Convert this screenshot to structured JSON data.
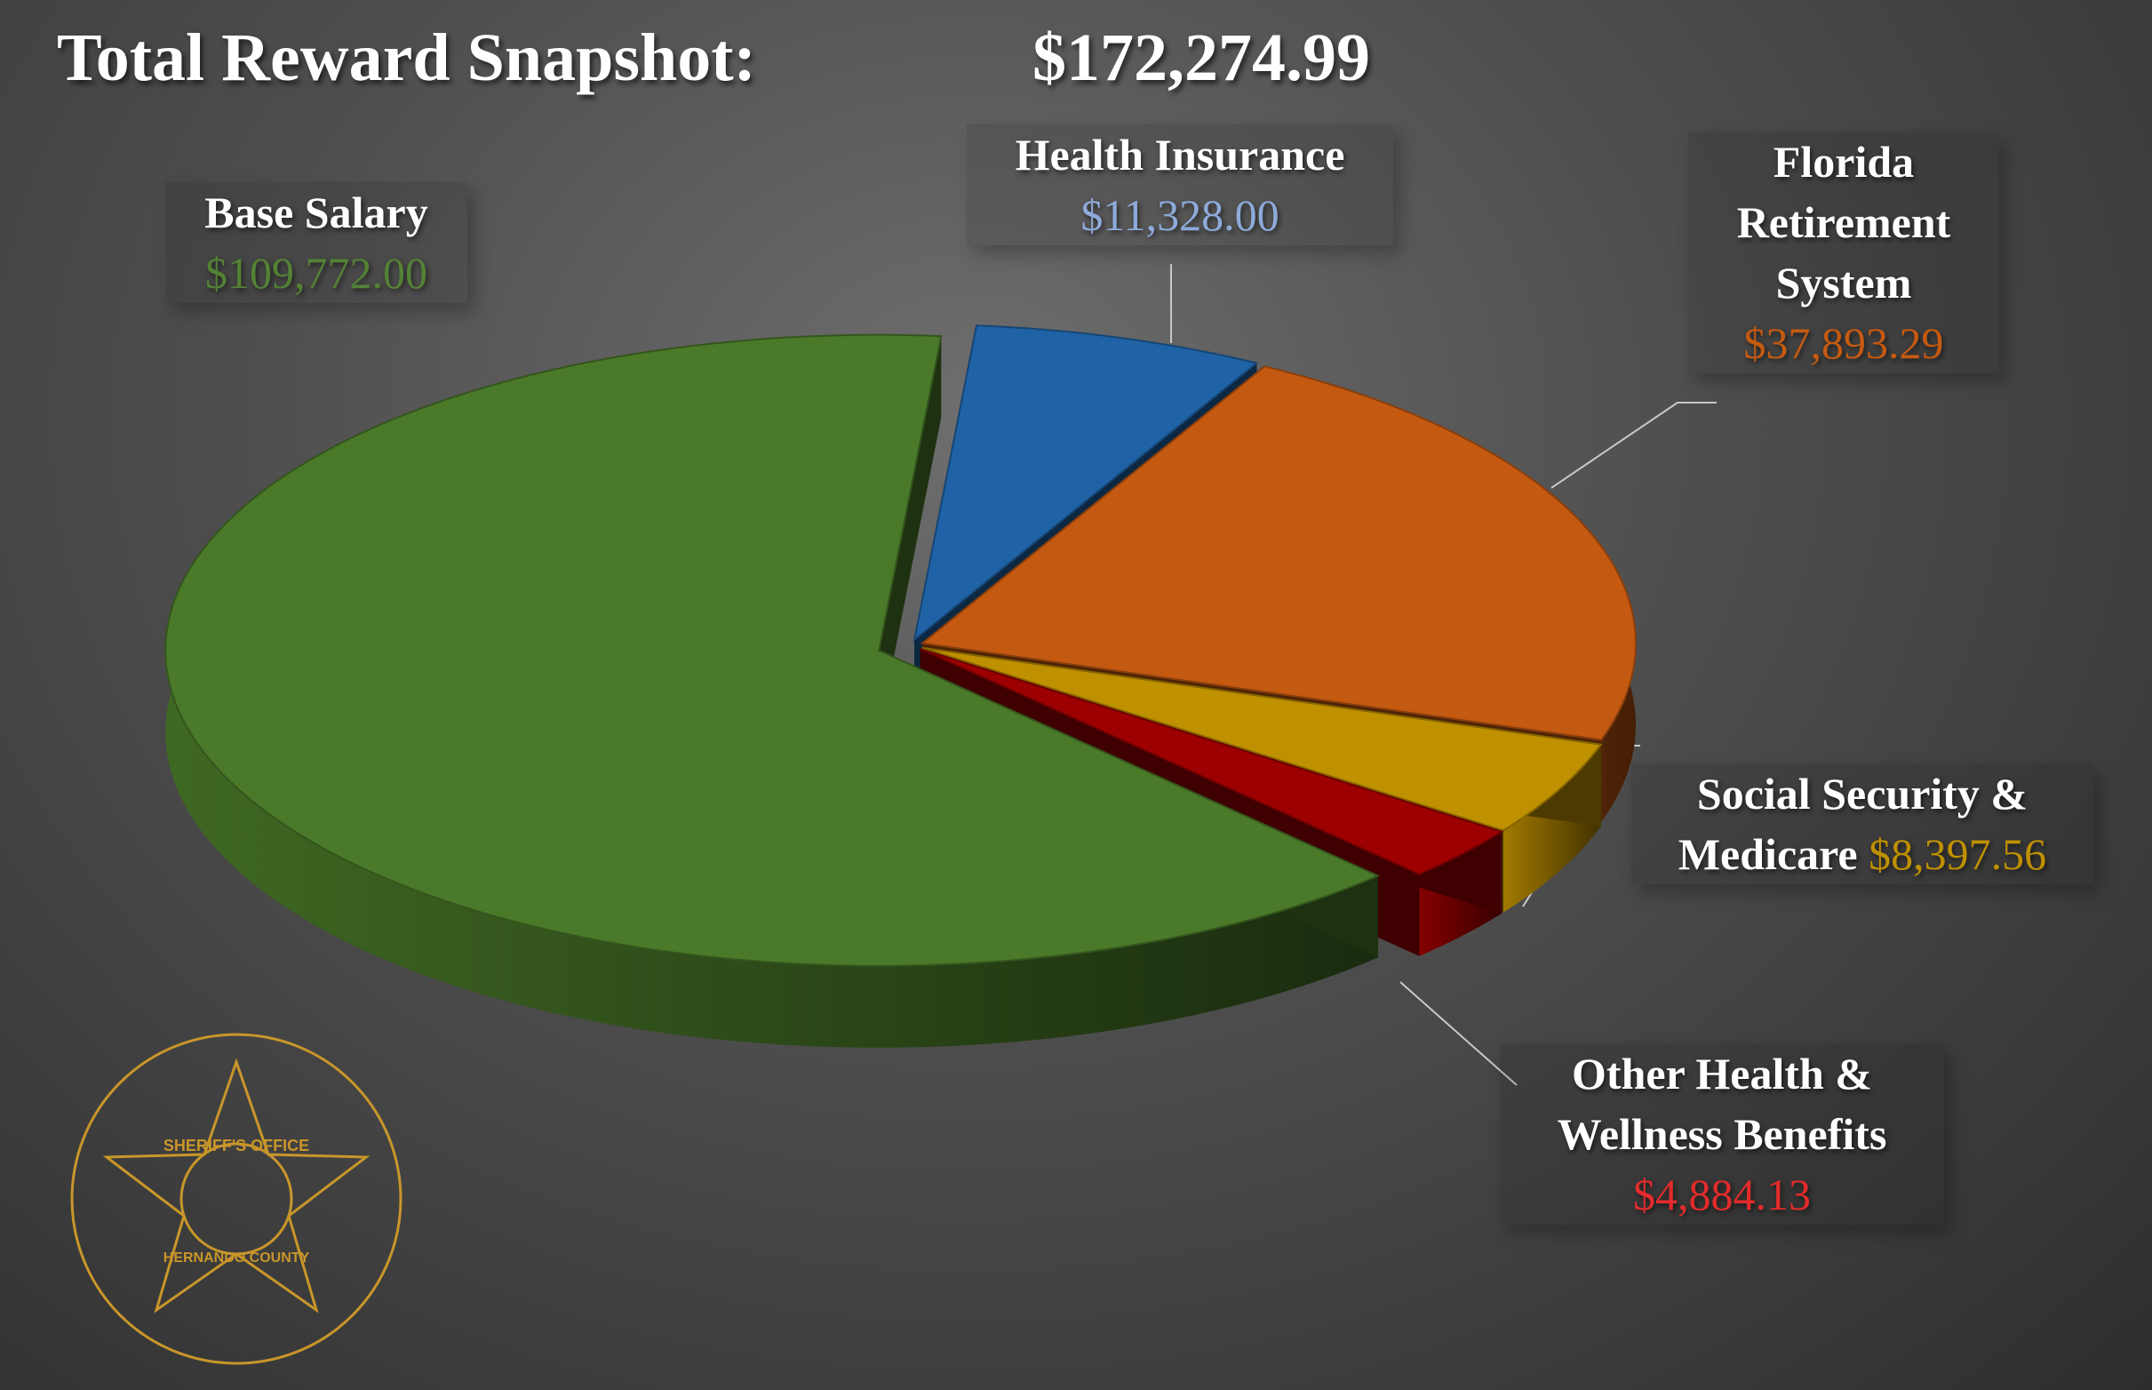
{
  "chart_data": {
    "type": "pie3d",
    "title": "Total Reward Snapshot:",
    "total": "$172,274.99",
    "categories": [
      "Health Insurance",
      "Florida Retirement System",
      "Social Security & Medicare",
      "Other Health & Wellness Benefits",
      "Base Salary"
    ],
    "values": [
      11328.0,
      37893.29,
      8397.56,
      4884.13,
      109772.0
    ],
    "value_labels": [
      "$11,328.00",
      "$37,893.29",
      "$8,397.56",
      "$4,884.13",
      "$109,772.00"
    ],
    "colors": [
      "#1f63a6",
      "#c45911",
      "#bf9000",
      "#9c0000",
      "#4a7a29"
    ],
    "label_colors": [
      "#8eaadb",
      "#c55a11",
      "#bf9000",
      "#e32b2b",
      "#548235"
    ]
  },
  "badge": {
    "top": "SHERIFF'S OFFICE",
    "bottom": "HERNANDO COUNTY"
  }
}
